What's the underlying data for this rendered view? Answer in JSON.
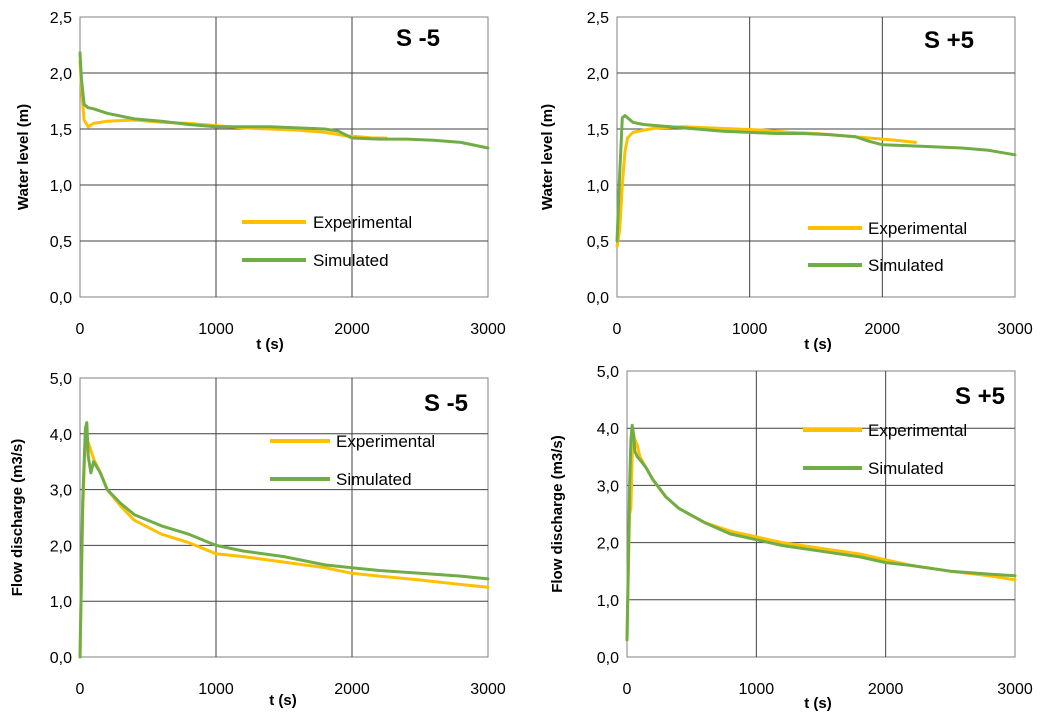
{
  "colors": {
    "experimental": "#FFC000",
    "simulated": "#70AD47",
    "grid": "#404040",
    "axis": "#808080"
  },
  "chart_data": [
    {
      "type": "line",
      "title": "S -5",
      "xlabel": "t (s)",
      "ylabel": "Water level (m)",
      "xlim": [
        0,
        3000
      ],
      "ylim": [
        0,
        2.5
      ],
      "x_ticks": [
        "0",
        "1000",
        "2000",
        "3000"
      ],
      "y_ticks": [
        "0,0",
        "0,5",
        "1,0",
        "1,5",
        "2,0",
        "2,5"
      ],
      "grid": true,
      "legend_position": "bottom-right",
      "series": [
        {
          "name": "Experimental",
          "x": [
            0,
            15,
            30,
            60,
            100,
            200,
            400,
            600,
            800,
            1000,
            1200,
            1400,
            1600,
            1800,
            1950,
            2050,
            2150,
            2250
          ],
          "values": [
            2.1,
            1.8,
            1.58,
            1.52,
            1.55,
            1.57,
            1.58,
            1.56,
            1.55,
            1.53,
            1.51,
            1.5,
            1.49,
            1.47,
            1.44,
            1.43,
            1.42,
            1.42
          ]
        },
        {
          "name": "Simulated",
          "x": [
            0,
            10,
            30,
            60,
            100,
            200,
            400,
            600,
            800,
            1000,
            1200,
            1400,
            1600,
            1800,
            1900,
            2000,
            2200,
            2400,
            2600,
            2800,
            3000
          ],
          "values": [
            2.18,
            1.95,
            1.72,
            1.69,
            1.68,
            1.64,
            1.59,
            1.57,
            1.54,
            1.52,
            1.52,
            1.52,
            1.51,
            1.5,
            1.48,
            1.42,
            1.41,
            1.41,
            1.4,
            1.38,
            1.33
          ]
        }
      ]
    },
    {
      "type": "line",
      "title": "S +5",
      "xlabel": "t (s)",
      "ylabel": "Water level (m)",
      "xlim": [
        0,
        3000
      ],
      "ylim": [
        0,
        2.5
      ],
      "x_ticks": [
        "0",
        "1000",
        "2000",
        "3000"
      ],
      "y_ticks": [
        "0,0",
        "0,5",
        "1,0",
        "1,5",
        "2,0",
        "2,5"
      ],
      "grid": true,
      "legend_position": "bottom-right",
      "series": [
        {
          "name": "Experimental",
          "x": [
            0,
            20,
            40,
            60,
            80,
            120,
            200,
            300,
            500,
            700,
            900,
            1100,
            1300,
            1500,
            1700,
            1900,
            2100,
            2250
          ],
          "values": [
            0.45,
            0.6,
            1.0,
            1.3,
            1.42,
            1.47,
            1.49,
            1.51,
            1.52,
            1.51,
            1.5,
            1.49,
            1.47,
            1.46,
            1.44,
            1.42,
            1.4,
            1.38
          ]
        },
        {
          "name": "Simulated",
          "x": [
            0,
            20,
            40,
            60,
            80,
            120,
            200,
            400,
            600,
            800,
            1000,
            1200,
            1400,
            1600,
            1800,
            1900,
            2000,
            2200,
            2400,
            2600,
            2800,
            3000
          ],
          "values": [
            0.5,
            1.1,
            1.6,
            1.62,
            1.6,
            1.56,
            1.54,
            1.52,
            1.5,
            1.48,
            1.47,
            1.46,
            1.46,
            1.45,
            1.43,
            1.39,
            1.36,
            1.35,
            1.34,
            1.33,
            1.31,
            1.27
          ]
        }
      ]
    },
    {
      "type": "line",
      "title": "S -5",
      "xlabel": "t (s)",
      "ylabel": "Flow discharge (m3/s)",
      "xlim": [
        0,
        3000
      ],
      "ylim": [
        0,
        5
      ],
      "x_ticks": [
        "0",
        "1000",
        "2000",
        "3000"
      ],
      "y_ticks": [
        "0,0",
        "1,0",
        "2,0",
        "3,0",
        "4,0",
        "5,0"
      ],
      "grid": true,
      "legend_position": "top-right",
      "series": [
        {
          "name": "Experimental",
          "x": [
            0,
            20,
            40,
            60,
            80,
            100,
            150,
            200,
            300,
            400,
            600,
            800,
            1000,
            1200,
            1500,
            1800,
            2000,
            2200,
            2500,
            2800,
            3000
          ],
          "values": [
            0.0,
            2.6,
            4.0,
            3.85,
            3.7,
            3.55,
            3.3,
            3.0,
            2.7,
            2.45,
            2.2,
            2.05,
            1.85,
            1.8,
            1.7,
            1.6,
            1.5,
            1.45,
            1.38,
            1.3,
            1.25
          ]
        },
        {
          "name": "Simulated",
          "x": [
            0,
            20,
            40,
            50,
            60,
            80,
            100,
            150,
            200,
            300,
            400,
            600,
            800,
            1000,
            1200,
            1500,
            1800,
            2000,
            2200,
            2500,
            2800,
            3000
          ],
          "values": [
            0.0,
            2.8,
            4.1,
            4.2,
            3.6,
            3.3,
            3.5,
            3.3,
            3.0,
            2.75,
            2.55,
            2.35,
            2.2,
            2.0,
            1.9,
            1.8,
            1.65,
            1.6,
            1.55,
            1.5,
            1.45,
            1.4
          ]
        }
      ]
    },
    {
      "type": "line",
      "title": "S +5",
      "xlabel": "t (s)",
      "ylabel": "Flow discharge (m3/s)",
      "xlim": [
        0,
        3000
      ],
      "ylim": [
        0,
        5
      ],
      "x_ticks": [
        "0",
        "1000",
        "2000",
        "3000"
      ],
      "y_ticks": [
        "0,0",
        "1,0",
        "2,0",
        "3,0",
        "4,0",
        "5,0"
      ],
      "grid": true,
      "legend_position": "top-right",
      "series": [
        {
          "name": "Experimental",
          "x": [
            0,
            10,
            20,
            30,
            40,
            50,
            60,
            80,
            100,
            150,
            200,
            300,
            400,
            600,
            800,
            1000,
            1200,
            1500,
            1800,
            2000,
            2200,
            2500,
            2800,
            3000
          ],
          "values": [
            0.3,
            1.5,
            2.5,
            2.6,
            3.5,
            3.9,
            3.8,
            3.7,
            3.5,
            3.3,
            3.1,
            2.8,
            2.6,
            2.35,
            2.2,
            2.1,
            2.0,
            1.9,
            1.8,
            1.7,
            1.6,
            1.5,
            1.42,
            1.35
          ]
        },
        {
          "name": "Simulated",
          "x": [
            0,
            10,
            20,
            30,
            40,
            50,
            60,
            80,
            100,
            150,
            200,
            300,
            400,
            600,
            800,
            1000,
            1200,
            1500,
            1800,
            2000,
            2200,
            2500,
            2800,
            3000
          ],
          "values": [
            0.3,
            1.6,
            3.0,
            3.8,
            4.05,
            3.9,
            3.6,
            3.5,
            3.45,
            3.3,
            3.1,
            2.8,
            2.6,
            2.35,
            2.15,
            2.05,
            1.95,
            1.85,
            1.75,
            1.65,
            1.6,
            1.5,
            1.45,
            1.42
          ]
        }
      ]
    }
  ]
}
